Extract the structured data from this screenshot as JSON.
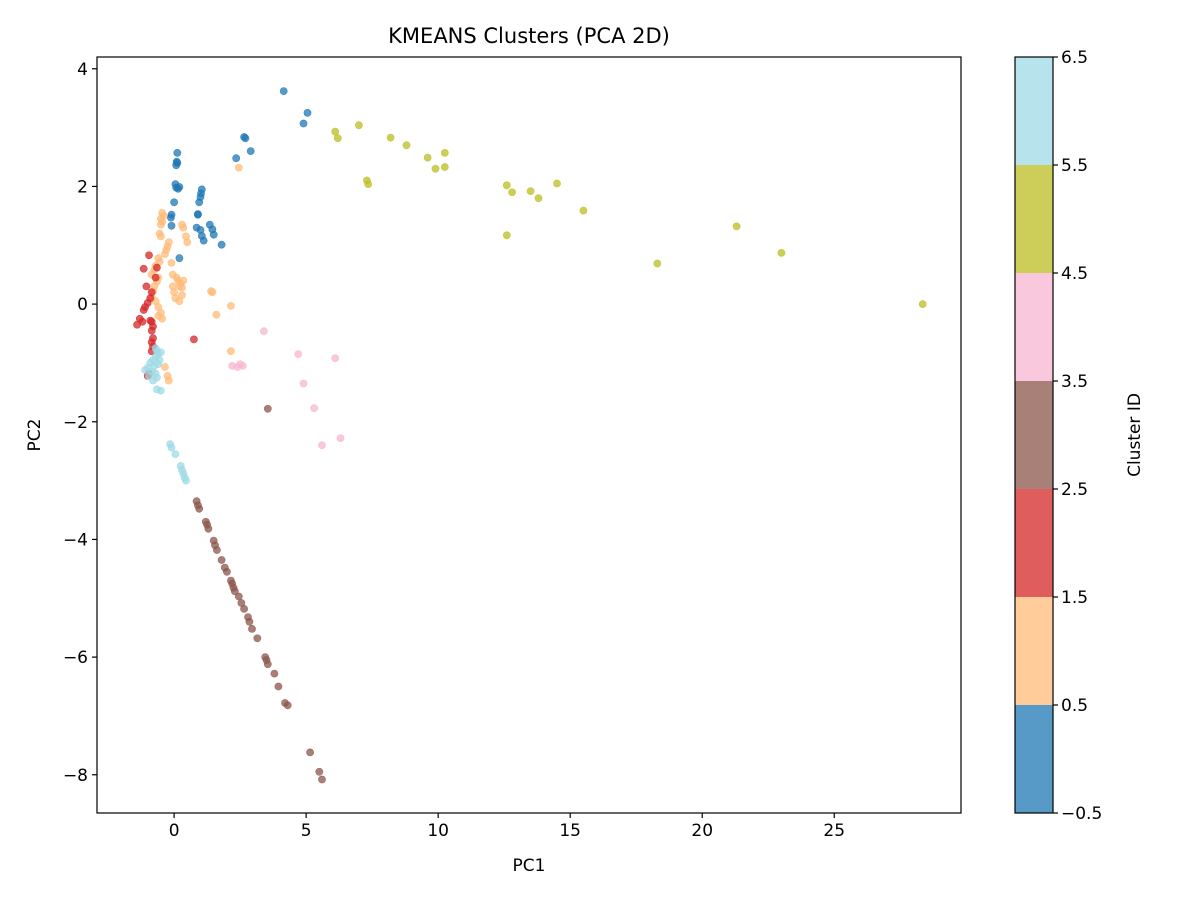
{
  "chart_data": {
    "type": "scatter",
    "title": "KMEANS Clusters (PCA 2D)",
    "xlabel": "PC1",
    "ylabel": "PC2",
    "xlim": [
      -2.92,
      29.8
    ],
    "ylim": [
      -8.65,
      4.2
    ],
    "xticks": [
      0,
      5,
      10,
      15,
      20,
      25
    ],
    "yticks": [
      -8,
      -6,
      -4,
      -2,
      0,
      2,
      4
    ],
    "xtick_labels": [
      "0",
      "5",
      "10",
      "15",
      "20",
      "25"
    ],
    "ytick_labels": [
      "−8",
      "−6",
      "−4",
      "−2",
      "0",
      "2",
      "4"
    ],
    "grid": false,
    "colorbar": {
      "label": "Cluster ID",
      "range": [
        -0.5,
        6.5
      ],
      "ticks": [
        -0.5,
        0.5,
        1.5,
        2.5,
        3.5,
        4.5,
        5.5,
        6.5
      ],
      "tick_labels": [
        "−0.5",
        "0.5",
        "1.5",
        "2.5",
        "3.5",
        "4.5",
        "5.5",
        "6.5"
      ],
      "colors": [
        "#1f77b4",
        "#ffbb78",
        "#d62728",
        "#8c564b",
        "#f7b6d2",
        "#bcbd22",
        "#9edae5"
      ]
    },
    "point_alpha": 0.75,
    "series": [
      {
        "cluster": 0,
        "points": [
          [
            4.15,
            3.62
          ],
          [
            5.05,
            3.25
          ],
          [
            4.9,
            3.07
          ],
          [
            2.65,
            2.84
          ],
          [
            2.7,
            2.82
          ],
          [
            2.9,
            2.6
          ],
          [
            2.35,
            2.48
          ],
          [
            0.12,
            2.57
          ],
          [
            0.1,
            2.42
          ],
          [
            0.08,
            2.36
          ],
          [
            0.12,
            2.4
          ],
          [
            0.05,
            2.04
          ],
          [
            0.08,
            1.98
          ],
          [
            0.15,
            1.96
          ],
          [
            0.2,
            1.99
          ],
          [
            1.05,
            1.95
          ],
          [
            1.02,
            1.88
          ],
          [
            1.0,
            1.82
          ],
          [
            0.95,
            1.73
          ],
          [
            0.0,
            1.73
          ],
          [
            0.9,
            1.53
          ],
          [
            0.9,
            1.52
          ],
          [
            -0.1,
            1.52
          ],
          [
            -0.12,
            1.47
          ],
          [
            1.35,
            1.35
          ],
          [
            1.45,
            1.27
          ],
          [
            1.5,
            1.18
          ],
          [
            -0.1,
            1.33
          ],
          [
            0.85,
            1.3
          ],
          [
            1.0,
            1.26
          ],
          [
            1.05,
            1.16
          ],
          [
            1.12,
            1.08
          ],
          [
            1.8,
            1.01
          ],
          [
            0.2,
            0.78
          ]
        ]
      },
      {
        "cluster": 1,
        "points": [
          [
            2.45,
            2.32
          ],
          [
            -0.45,
            1.55
          ],
          [
            -0.4,
            1.5
          ],
          [
            -0.5,
            1.45
          ],
          [
            -0.45,
            1.4
          ],
          [
            -0.5,
            1.35
          ],
          [
            -0.55,
            1.2
          ],
          [
            -0.5,
            1.15
          ],
          [
            -0.2,
            1.05
          ],
          [
            -0.25,
            0.98
          ],
          [
            -0.3,
            0.92
          ],
          [
            -0.35,
            0.85
          ],
          [
            0.3,
            1.35
          ],
          [
            0.35,
            1.3
          ],
          [
            0.45,
            1.15
          ],
          [
            0.5,
            1.05
          ],
          [
            -0.6,
            0.78
          ],
          [
            -0.55,
            0.72
          ],
          [
            -0.7,
            0.65
          ],
          [
            -0.75,
            0.58
          ],
          [
            -0.85,
            0.5
          ],
          [
            -0.6,
            0.45
          ],
          [
            -0.65,
            0.38
          ],
          [
            -0.75,
            0.3
          ],
          [
            -0.8,
            0.22
          ],
          [
            -0.85,
            0.12
          ],
          [
            -0.7,
            0.05
          ],
          [
            -0.6,
            -0.05
          ],
          [
            -0.5,
            -0.15
          ],
          [
            -0.45,
            -0.25
          ],
          [
            -0.6,
            -0.2
          ],
          [
            -0.1,
            0.7
          ],
          [
            -0.05,
            0.5
          ],
          [
            0.1,
            0.45
          ],
          [
            0.15,
            0.4
          ],
          [
            0.2,
            0.3
          ],
          [
            0.25,
            0.35
          ],
          [
            0.3,
            0.28
          ],
          [
            0.35,
            0.4
          ],
          [
            -0.05,
            0.3
          ],
          [
            0.0,
            0.2
          ],
          [
            0.05,
            0.1
          ],
          [
            0.2,
            0.05
          ],
          [
            0.3,
            0.15
          ],
          [
            1.4,
            0.22
          ],
          [
            1.45,
            0.2
          ],
          [
            1.6,
            -0.18
          ],
          [
            2.15,
            -0.03
          ],
          [
            2.15,
            -0.8
          ],
          [
            -0.35,
            -1.07
          ],
          [
            -0.2,
            -1.3
          ],
          [
            -0.25,
            -1.22
          ]
        ]
      },
      {
        "cluster": 2,
        "points": [
          [
            -0.95,
            0.83
          ],
          [
            -1.15,
            0.6
          ],
          [
            -0.65,
            0.62
          ],
          [
            -0.7,
            0.45
          ],
          [
            -1.05,
            0.3
          ],
          [
            -0.85,
            0.2
          ],
          [
            -0.9,
            0.1
          ],
          [
            -1.0,
            0.02
          ],
          [
            -1.1,
            -0.05
          ],
          [
            -1.15,
            -0.1
          ],
          [
            -1.3,
            -0.25
          ],
          [
            -1.2,
            -0.3
          ],
          [
            -1.4,
            -0.35
          ],
          [
            -0.9,
            -0.28
          ],
          [
            -0.85,
            -0.3
          ],
          [
            -0.8,
            -0.38
          ],
          [
            -0.85,
            -0.45
          ],
          [
            -0.8,
            -0.58
          ],
          [
            -0.85,
            -0.65
          ],
          [
            -0.8,
            -0.72
          ],
          [
            -0.85,
            -0.8
          ],
          [
            -1.0,
            -1.22
          ],
          [
            -0.95,
            -1.18
          ],
          [
            0.75,
            -0.6
          ]
        ]
      },
      {
        "cluster": 3,
        "points": [
          [
            3.55,
            -1.78
          ],
          [
            0.85,
            -3.35
          ],
          [
            0.9,
            -3.42
          ],
          [
            0.95,
            -3.48
          ],
          [
            1.2,
            -3.7
          ],
          [
            1.25,
            -3.75
          ],
          [
            1.3,
            -3.82
          ],
          [
            1.5,
            -4.02
          ],
          [
            1.55,
            -4.1
          ],
          [
            1.62,
            -4.18
          ],
          [
            1.8,
            -4.35
          ],
          [
            1.92,
            -4.48
          ],
          [
            2.0,
            -4.55
          ],
          [
            2.15,
            -4.7
          ],
          [
            2.2,
            -4.75
          ],
          [
            2.25,
            -4.82
          ],
          [
            2.3,
            -4.88
          ],
          [
            2.45,
            -4.97
          ],
          [
            2.55,
            -5.08
          ],
          [
            2.65,
            -5.18
          ],
          [
            2.8,
            -5.32
          ],
          [
            2.85,
            -5.4
          ],
          [
            2.95,
            -5.52
          ],
          [
            3.15,
            -5.68
          ],
          [
            3.45,
            -6.0
          ],
          [
            3.5,
            -6.05
          ],
          [
            3.55,
            -6.12
          ],
          [
            3.8,
            -6.28
          ],
          [
            3.95,
            -6.5
          ],
          [
            4.2,
            -6.78
          ],
          [
            4.3,
            -6.82
          ],
          [
            5.15,
            -7.62
          ],
          [
            5.5,
            -7.95
          ],
          [
            5.6,
            -8.08
          ]
        ]
      },
      {
        "cluster": 4,
        "points": [
          [
            3.4,
            -0.46
          ],
          [
            4.7,
            -0.85
          ],
          [
            6.1,
            -0.92
          ],
          [
            2.2,
            -1.05
          ],
          [
            2.4,
            -1.07
          ],
          [
            2.5,
            -1.02
          ],
          [
            2.6,
            -1.05
          ],
          [
            4.9,
            -1.35
          ],
          [
            5.3,
            -1.77
          ],
          [
            5.6,
            -2.4
          ],
          [
            6.3,
            -2.28
          ]
        ]
      },
      {
        "cluster": 5,
        "points": [
          [
            6.1,
            2.93
          ],
          [
            6.2,
            2.82
          ],
          [
            7.0,
            3.04
          ],
          [
            8.2,
            2.83
          ],
          [
            8.8,
            2.7
          ],
          [
            9.6,
            2.49
          ],
          [
            9.9,
            2.3
          ],
          [
            10.25,
            2.57
          ],
          [
            10.25,
            2.33
          ],
          [
            7.3,
            2.1
          ],
          [
            7.35,
            2.04
          ],
          [
            12.6,
            2.02
          ],
          [
            12.8,
            1.9
          ],
          [
            13.5,
            1.92
          ],
          [
            13.8,
            1.8
          ],
          [
            14.5,
            2.05
          ],
          [
            15.5,
            1.59
          ],
          [
            12.6,
            1.17
          ],
          [
            18.3,
            0.69
          ],
          [
            21.3,
            1.32
          ],
          [
            23.0,
            0.87
          ],
          [
            28.35,
            0.0
          ]
        ]
      },
      {
        "cluster": 6,
        "points": [
          [
            -0.7,
            -0.75
          ],
          [
            -0.65,
            -0.8
          ],
          [
            -0.6,
            -0.85
          ],
          [
            -0.7,
            -0.9
          ],
          [
            -0.8,
            -0.95
          ],
          [
            -0.9,
            -1.0
          ],
          [
            -0.75,
            -1.05
          ],
          [
            -0.6,
            -1.02
          ],
          [
            -1.0,
            -1.08
          ],
          [
            -1.1,
            -1.12
          ],
          [
            -0.85,
            -1.15
          ],
          [
            -0.7,
            -1.18
          ],
          [
            -0.95,
            -1.22
          ],
          [
            -0.5,
            -0.82
          ],
          [
            -0.55,
            -0.95
          ],
          [
            -0.65,
            -1.25
          ],
          [
            -0.8,
            -1.3
          ],
          [
            -0.65,
            -1.45
          ],
          [
            -0.5,
            -1.47
          ],
          [
            -0.15,
            -2.38
          ],
          [
            -0.1,
            -2.44
          ],
          [
            0.05,
            -2.55
          ],
          [
            0.25,
            -2.75
          ],
          [
            0.3,
            -2.82
          ],
          [
            0.35,
            -2.88
          ],
          [
            0.4,
            -2.95
          ],
          [
            0.45,
            -3.0
          ]
        ]
      }
    ]
  }
}
